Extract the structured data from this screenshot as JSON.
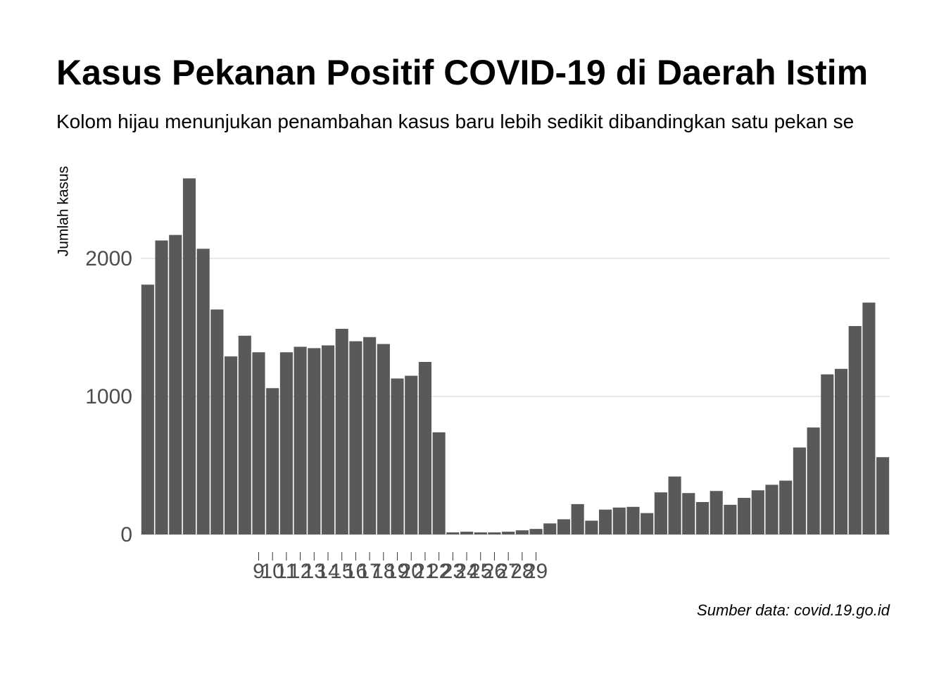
{
  "chart_data": {
    "type": "bar",
    "title": "Kasus Pekanan Positif COVID-19 di Daerah Istim",
    "subtitle": "Kolom hijau menunjukan penambahan kasus baru lebih sedikit dibandingkan satu pekan se",
    "y_label": "Jumlah kasus",
    "caption": "Sumber data: covid.19.go.id",
    "categories": [
      null,
      null,
      null,
      null,
      null,
      null,
      null,
      null,
      "9",
      "10",
      "11",
      "12",
      "13",
      "14",
      "15",
      "16",
      "17",
      "18",
      "19",
      "20",
      "21",
      "22",
      "23",
      "24",
      "25",
      "26",
      "27",
      "28",
      "29",
      null,
      null,
      null,
      null,
      null,
      null,
      null,
      null,
      null,
      null,
      null,
      null,
      null,
      null,
      null,
      null,
      null,
      null,
      null,
      null,
      null,
      null,
      null,
      null,
      null
    ],
    "values": [
      1810,
      2130,
      2170,
      2580,
      2070,
      1630,
      1290,
      1440,
      1320,
      1060,
      1320,
      1360,
      1350,
      1370,
      1490,
      1400,
      1430,
      1380,
      1130,
      1150,
      1250,
      740,
      15,
      20,
      15,
      15,
      20,
      30,
      40,
      80,
      110,
      220,
      100,
      180,
      195,
      200,
      155,
      305,
      420,
      300,
      235,
      315,
      215,
      265,
      320,
      360,
      390,
      630,
      775,
      1160,
      1200,
      1510,
      1680,
      560
    ],
    "color": "#595959",
    "ylim": [
      0,
      2740
    ],
    "yticks": [
      0,
      1000,
      2000
    ],
    "grid": true
  }
}
